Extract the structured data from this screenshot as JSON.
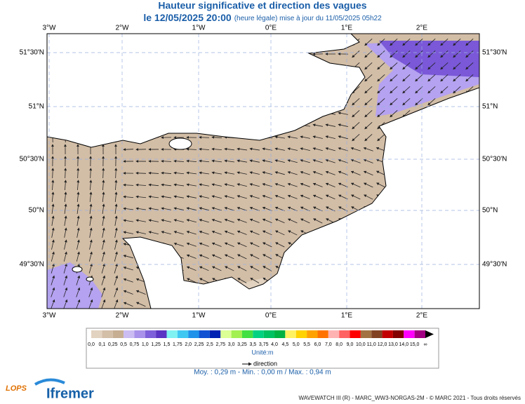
{
  "header": {
    "title": "Hauteur significative et direction des vagues",
    "date": "le 12/05/2025 20:00",
    "note": "(heure légale) mise à jour du 11/05/2025 05h22"
  },
  "axes": {
    "longitudes": [
      "3°W",
      "2°W",
      "1°W",
      "0°E",
      "1°E",
      "2°E"
    ],
    "latitudes": [
      "51°30'N",
      "51°N",
      "50°30'N",
      "50°N",
      "49°30'N"
    ]
  },
  "colorbar": {
    "labels": [
      "0,0",
      "0,1",
      "0,25",
      "0,5",
      "0,75",
      "1,0",
      "1,25",
      "1,5",
      "1,75",
      "2,0",
      "2,25",
      "2,5",
      "2,75",
      "3,0",
      "3,25",
      "3,5",
      "3,75",
      "4,0",
      "4,5",
      "5,0",
      "5,5",
      "6,0",
      "7,0",
      "8,0",
      "9,0",
      "10,0",
      "11,0",
      "12,0",
      "13,0",
      "14,0",
      "15,0",
      "∞"
    ],
    "colors": [
      "#e2d2c0",
      "#d3bea8",
      "#c6ae93",
      "#cbbcf2",
      "#a892ea",
      "#7e60da",
      "#5a34c2",
      "#80f2f2",
      "#40c8f2",
      "#2092ea",
      "#1052d2",
      "#0022b2",
      "#dcff96",
      "#a2f052",
      "#42e042",
      "#00d282",
      "#00c262",
      "#00b242",
      "#fff262",
      "#ffd200",
      "#ffa200",
      "#ff7200",
      "#ffb2b2",
      "#ff6262",
      "#ff0000",
      "#a27242",
      "#824222",
      "#c20000",
      "#820000",
      "#ff00ff",
      "#a20082"
    ],
    "unit": "Unité:m",
    "direction": "direction"
  },
  "stats": "Moy. : 0,29 m   -   Min. : 0,00 m / Max. : 0,94 m",
  "footer": "WAVEWATCH III (R) - MARC_WW3-NORGAS-2M - © MARC 2021 - Tous droits réservés",
  "logos": {
    "lops": "LOPS",
    "ifremer": "Ifremer"
  }
}
